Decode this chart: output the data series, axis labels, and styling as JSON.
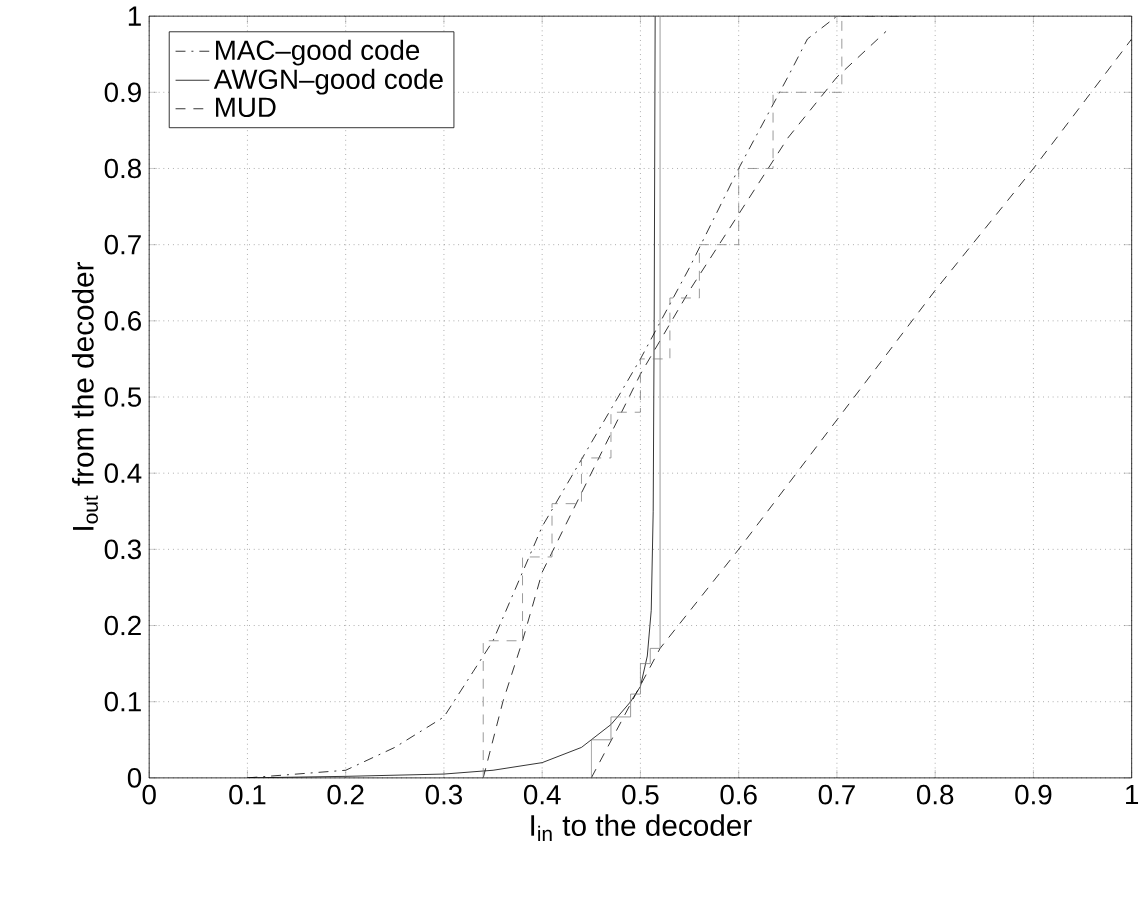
{
  "chart_data": {
    "type": "line",
    "xlabel": "I$_{in}$ to the decoder",
    "ylabel": "I$_{out}$ from the decoder",
    "xlim": [
      0,
      1
    ],
    "ylim": [
      0,
      1
    ],
    "xticks": [
      0,
      0.1,
      0.2,
      0.3,
      0.4,
      0.5,
      0.6,
      0.7,
      0.8,
      0.9,
      1
    ],
    "yticks": [
      0,
      0.1,
      0.2,
      0.3,
      0.4,
      0.5,
      0.6,
      0.7,
      0.8,
      0.9,
      1
    ],
    "grid": true,
    "legend": "top left",
    "marker": "none",
    "series": [
      {
        "name": "MAC–good code",
        "color": "#000000",
        "line_style": "dashdot",
        "x": [
          0.1,
          0.2,
          0.25,
          0.3,
          0.33,
          0.35,
          0.4,
          0.45,
          0.5,
          0.55,
          0.6,
          0.65,
          0.67,
          0.7,
          0.75,
          0.78
        ],
        "values": [
          0,
          0.01,
          0.04,
          0.08,
          0.14,
          0.18,
          0.33,
          0.44,
          0.55,
          0.67,
          0.8,
          0.92,
          0.97,
          1,
          1,
          1
        ]
      },
      {
        "name": "AWGN–good code",
        "color": "#000000",
        "line_style": "solid",
        "x": [
          0.1,
          0.2,
          0.3,
          0.35,
          0.4,
          0.44,
          0.47,
          0.49,
          0.5,
          0.507,
          0.511,
          0.513,
          0.514,
          0.515
        ],
        "values": [
          0,
          0.002,
          0.005,
          0.01,
          0.02,
          0.04,
          0.07,
          0.1,
          0.12,
          0.16,
          0.22,
          0.35,
          0.6,
          1
        ]
      },
      {
        "name": "MUD",
        "color": "#000000",
        "line_style": "dashed",
        "x": [
          0.45,
          0.52,
          0.6,
          0.7,
          0.8,
          0.9,
          1.0
        ],
        "values": [
          0,
          0.17,
          0.3,
          0.47,
          0.64,
          0.8,
          0.97
        ]
      },
      {
        "color": "#000000",
        "line_style": "dashed",
        "x": [
          0.34,
          0.36,
          0.38,
          0.4,
          0.45,
          0.5,
          0.55,
          0.6,
          0.65,
          0.7,
          0.75
        ],
        "values": [
          0,
          0.1,
          0.18,
          0.27,
          0.4,
          0.53,
          0.64,
          0.74,
          0.84,
          0.92,
          0.98
        ]
      },
      {
        "color": "#808080",
        "line_style": "dashed",
        "x": [
          0.34,
          0.34,
          0.38,
          0.38,
          0.41,
          0.41,
          0.44,
          0.44,
          0.47,
          0.47,
          0.5,
          0.5,
          0.53,
          0.53,
          0.56,
          0.56,
          0.6,
          0.6,
          0.635,
          0.635,
          0.705,
          0.705
        ],
        "values": [
          0,
          0.18,
          0.18,
          0.29,
          0.29,
          0.36,
          0.36,
          0.42,
          0.42,
          0.48,
          0.48,
          0.55,
          0.55,
          0.63,
          0.63,
          0.7,
          0.7,
          0.8,
          0.8,
          0.9,
          0.9,
          1
        ]
      },
      {
        "color": "#808080",
        "line_style": "solid",
        "x": [
          0.45,
          0.45,
          0.47,
          0.47,
          0.49,
          0.49,
          0.5,
          0.5,
          0.51,
          0.51,
          0.52,
          0.52
        ],
        "values": [
          0,
          0.05,
          0.05,
          0.08,
          0.08,
          0.11,
          0.11,
          0.15,
          0.15,
          0.17,
          0.17,
          1
        ]
      }
    ]
  }
}
